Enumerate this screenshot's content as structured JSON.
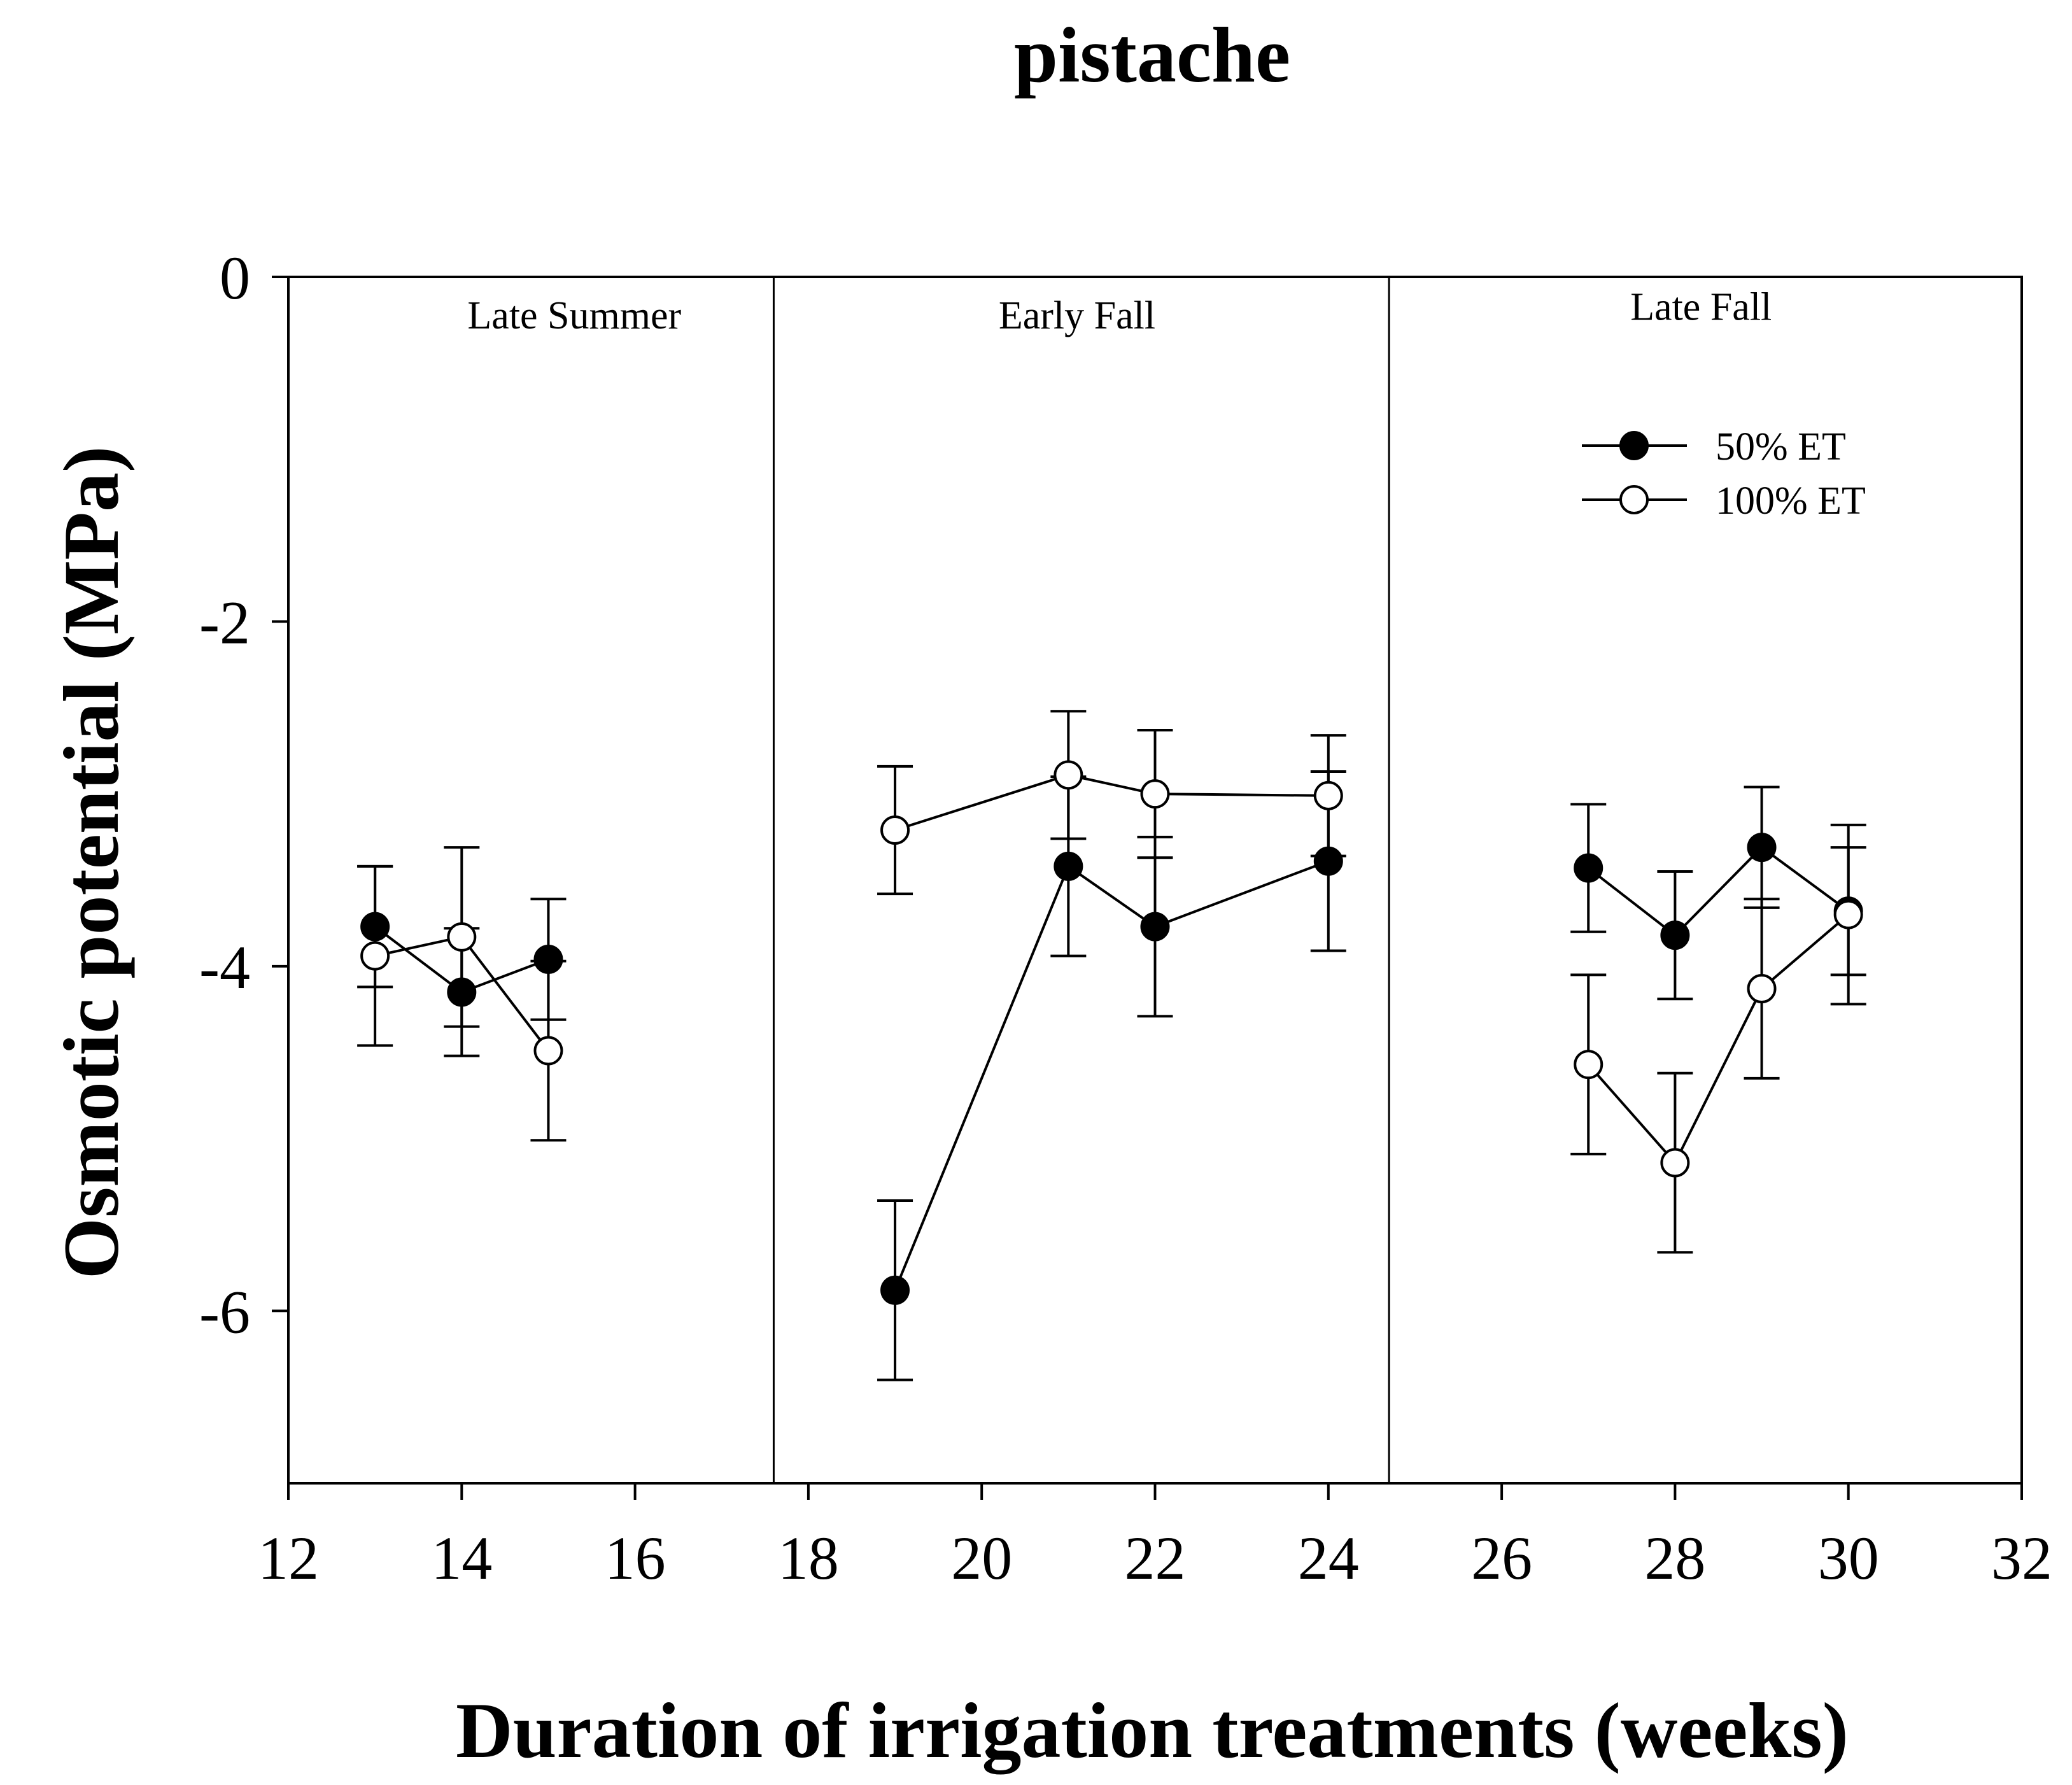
{
  "chart_data": {
    "type": "line",
    "title": "pistache",
    "xlabel": "Duration of irrigation treatments (weeks)",
    "ylabel": "Osmotic potential (MPa)",
    "xlim": [
      12,
      32
    ],
    "ylim": [
      -7,
      0
    ],
    "x_ticks": [
      12,
      14,
      16,
      18,
      20,
      22,
      24,
      26,
      28,
      30,
      32
    ],
    "y_ticks": [
      0,
      -2,
      -4,
      -6
    ],
    "x_tick_labels": [
      "12",
      "14",
      "16",
      "18",
      "20",
      "22",
      "24",
      "26",
      "28",
      "30",
      "32"
    ],
    "y_tick_labels": [
      "0",
      "-2",
      "-4",
      "-6"
    ],
    "grid": false,
    "legend_position": "top-right",
    "season_dividers": [
      17.6,
      24.7
    ],
    "seasons": [
      {
        "label": "Late Summer",
        "x": 15.3,
        "y": -0.3
      },
      {
        "label": "Early Fall",
        "x": 21.1,
        "y": -0.3
      },
      {
        "label": "Late Fall",
        "x": 28.3,
        "y": -0.25
      }
    ],
    "series": [
      {
        "name": "50% ET",
        "marker": "filled-circle",
        "color": "#000000",
        "segments": [
          [
            {
              "x": 13,
              "y": -3.77,
              "err": 0.35
            },
            {
              "x": 14,
              "y": -4.15,
              "err": 0.37
            },
            {
              "x": 15,
              "y": -3.96,
              "err": 0.35
            }
          ],
          [
            {
              "x": 19,
              "y": -5.88,
              "err": 0.52
            },
            {
              "x": 21,
              "y": -3.42,
              "err": 0.52
            },
            {
              "x": 22,
              "y": -3.77,
              "err": 0.52
            },
            {
              "x": 24,
              "y": -3.39,
              "err": 0.52
            }
          ],
          [
            {
              "x": 27,
              "y": -3.43,
              "err": 0.37
            },
            {
              "x": 28,
              "y": -3.82,
              "err": 0.37
            },
            {
              "x": 29,
              "y": -3.31,
              "err": 0.35
            },
            {
              "x": 30,
              "y": -3.68,
              "err": 0.37
            }
          ]
        ]
      },
      {
        "name": "100% ET",
        "marker": "open-circle",
        "color": "#000000",
        "segments": [
          [
            {
              "x": 13,
              "y": -3.94,
              "err": 0.52
            },
            {
              "x": 14,
              "y": -3.83,
              "err": 0.52
            },
            {
              "x": 15,
              "y": -4.49,
              "err": 0.52
            }
          ],
          [
            {
              "x": 19,
              "y": -3.21,
              "err": 0.37
            },
            {
              "x": 21,
              "y": -2.89,
              "err": 0.37
            },
            {
              "x": 22,
              "y": -3.0,
              "err": 0.37
            },
            {
              "x": 24,
              "y": -3.01,
              "err": 0.35
            }
          ],
          [
            {
              "x": 27,
              "y": -4.57,
              "err": 0.52
            },
            {
              "x": 28,
              "y": -5.14,
              "err": 0.52
            },
            {
              "x": 29,
              "y": -4.13,
              "err": 0.52
            },
            {
              "x": 30,
              "y": -3.7,
              "err": 0.52
            }
          ]
        ]
      }
    ]
  }
}
